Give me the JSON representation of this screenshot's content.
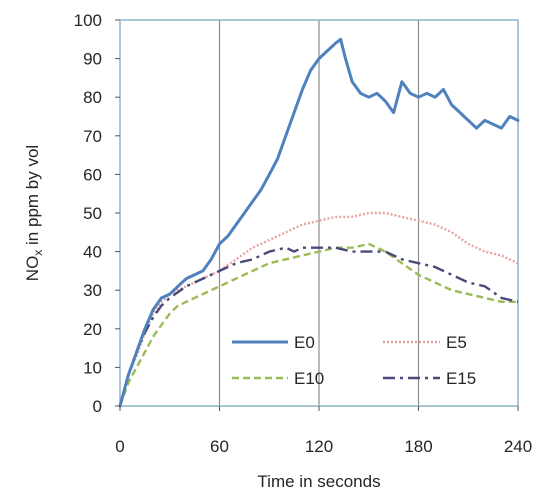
{
  "chart_data": {
    "type": "line",
    "xlabel": "Time in seconds",
    "ylabel": "NOx in ppm by vol",
    "ylabel_main": "NO",
    "ylabel_sub": "x",
    "ylabel_rest": " in ppm by vol",
    "xlim": [
      0,
      240
    ],
    "ylim": [
      0,
      100
    ],
    "x_ticks": [
      0,
      60,
      120,
      180,
      240
    ],
    "y_ticks": [
      0,
      10,
      20,
      30,
      40,
      50,
      60,
      70,
      80,
      90,
      100
    ],
    "grid": "vertical",
    "legend_placement": "bottom-right",
    "series": [
      {
        "name": "E0",
        "color": "#4f81bd",
        "style": "solid",
        "points": [
          [
            0,
            0
          ],
          [
            5,
            8
          ],
          [
            10,
            14
          ],
          [
            15,
            20
          ],
          [
            20,
            25
          ],
          [
            25,
            28
          ],
          [
            30,
            29
          ],
          [
            35,
            31
          ],
          [
            40,
            33
          ],
          [
            45,
            34
          ],
          [
            50,
            35
          ],
          [
            55,
            38
          ],
          [
            60,
            42
          ],
          [
            65,
            44
          ],
          [
            70,
            47
          ],
          [
            75,
            50
          ],
          [
            80,
            53
          ],
          [
            85,
            56
          ],
          [
            90,
            60
          ],
          [
            95,
            64
          ],
          [
            100,
            70
          ],
          [
            105,
            76
          ],
          [
            110,
            82
          ],
          [
            115,
            87
          ],
          [
            120,
            90
          ],
          [
            125,
            92
          ],
          [
            130,
            94
          ],
          [
            133,
            95
          ],
          [
            136,
            90
          ],
          [
            140,
            84
          ],
          [
            145,
            81
          ],
          [
            150,
            80
          ],
          [
            155,
            81
          ],
          [
            160,
            79
          ],
          [
            165,
            76
          ],
          [
            170,
            84
          ],
          [
            175,
            81
          ],
          [
            180,
            80
          ],
          [
            185,
            81
          ],
          [
            190,
            80
          ],
          [
            195,
            82
          ],
          [
            200,
            78
          ],
          [
            205,
            76
          ],
          [
            210,
            74
          ],
          [
            215,
            72
          ],
          [
            220,
            74
          ],
          [
            225,
            73
          ],
          [
            230,
            72
          ],
          [
            235,
            75
          ],
          [
            240,
            74
          ]
        ]
      },
      {
        "name": "E5",
        "color": "#e8a2a0",
        "style": "dotted",
        "points": [
          [
            0,
            0
          ],
          [
            5,
            8
          ],
          [
            10,
            13
          ],
          [
            15,
            19
          ],
          [
            20,
            24
          ],
          [
            25,
            27
          ],
          [
            30,
            29
          ],
          [
            40,
            31
          ],
          [
            50,
            33
          ],
          [
            60,
            35
          ],
          [
            70,
            38
          ],
          [
            80,
            41
          ],
          [
            90,
            43
          ],
          [
            100,
            45
          ],
          [
            110,
            47
          ],
          [
            120,
            48
          ],
          [
            130,
            49
          ],
          [
            140,
            49
          ],
          [
            150,
            50
          ],
          [
            160,
            50
          ],
          [
            170,
            49
          ],
          [
            180,
            48
          ],
          [
            190,
            47
          ],
          [
            200,
            45
          ],
          [
            210,
            42
          ],
          [
            220,
            40
          ],
          [
            230,
            39
          ],
          [
            240,
            37
          ]
        ]
      },
      {
        "name": "E10",
        "color": "#9bbb59",
        "style": "dashed",
        "points": [
          [
            0,
            0
          ],
          [
            5,
            6
          ],
          [
            10,
            10
          ],
          [
            15,
            14
          ],
          [
            20,
            18
          ],
          [
            25,
            21
          ],
          [
            30,
            24
          ],
          [
            35,
            26
          ],
          [
            40,
            27
          ],
          [
            50,
            29
          ],
          [
            60,
            31
          ],
          [
            70,
            33
          ],
          [
            80,
            35
          ],
          [
            90,
            37
          ],
          [
            100,
            38
          ],
          [
            110,
            39
          ],
          [
            120,
            40
          ],
          [
            130,
            41
          ],
          [
            140,
            41
          ],
          [
            150,
            42
          ],
          [
            155,
            41
          ],
          [
            160,
            40
          ],
          [
            170,
            37
          ],
          [
            180,
            34
          ],
          [
            190,
            32
          ],
          [
            200,
            30
          ],
          [
            210,
            29
          ],
          [
            220,
            28
          ],
          [
            230,
            27
          ],
          [
            240,
            27
          ]
        ]
      },
      {
        "name": "E15",
        "color": "#4a4a7a",
        "style": "dashdot",
        "points": [
          [
            0,
            0
          ],
          [
            5,
            8
          ],
          [
            10,
            14
          ],
          [
            15,
            19
          ],
          [
            20,
            23
          ],
          [
            25,
            26
          ],
          [
            30,
            28
          ],
          [
            40,
            31
          ],
          [
            50,
            33
          ],
          [
            60,
            35
          ],
          [
            70,
            37
          ],
          [
            80,
            38
          ],
          [
            90,
            40
          ],
          [
            100,
            41
          ],
          [
            105,
            40
          ],
          [
            110,
            41
          ],
          [
            120,
            41
          ],
          [
            130,
            41
          ],
          [
            140,
            40
          ],
          [
            150,
            40
          ],
          [
            160,
            40
          ],
          [
            170,
            38
          ],
          [
            180,
            37
          ],
          [
            190,
            36
          ],
          [
            200,
            34
          ],
          [
            210,
            32
          ],
          [
            220,
            31
          ],
          [
            230,
            28
          ],
          [
            240,
            27
          ]
        ]
      }
    ]
  }
}
